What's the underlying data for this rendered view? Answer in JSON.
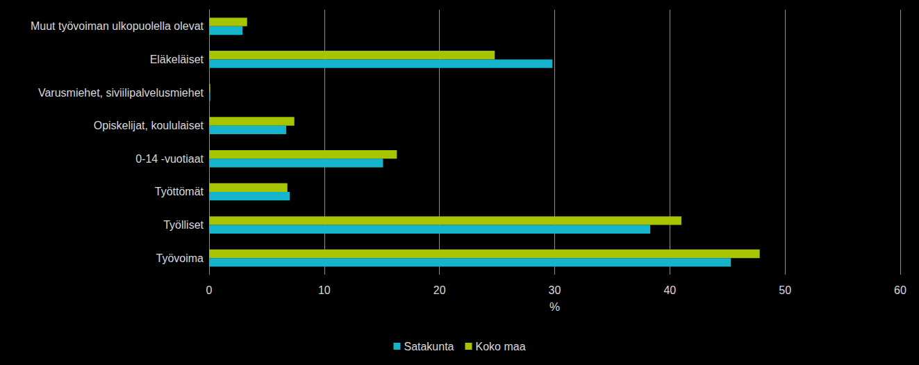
{
  "chart_data": {
    "type": "bar",
    "orientation": "horizontal",
    "categories": [
      "Työvoima",
      "Työlliset",
      "Työttömät",
      "0-14 -vuotiaat",
      "Opiskelijat, koululaiset",
      "Varusmiehet, siviilipalvelusmiehet",
      "Eläkeläiset",
      "Muut työvoiman ulkopuolella olevat"
    ],
    "series": [
      {
        "name": "Satakunta",
        "color": "#14b4cc",
        "values": [
          45.3,
          38.3,
          7.0,
          15.1,
          6.7,
          0.1,
          29.8,
          2.9
        ]
      },
      {
        "name": "Koko maa",
        "color": "#a8c400",
        "values": [
          47.8,
          41.0,
          6.8,
          16.3,
          7.4,
          0.1,
          24.8,
          3.3
        ]
      }
    ],
    "x_label": "%",
    "xlim": [
      0,
      60
    ],
    "xticks": [
      0,
      10,
      20,
      30,
      40,
      50,
      60
    ],
    "grid": true,
    "legend": "bottom"
  }
}
